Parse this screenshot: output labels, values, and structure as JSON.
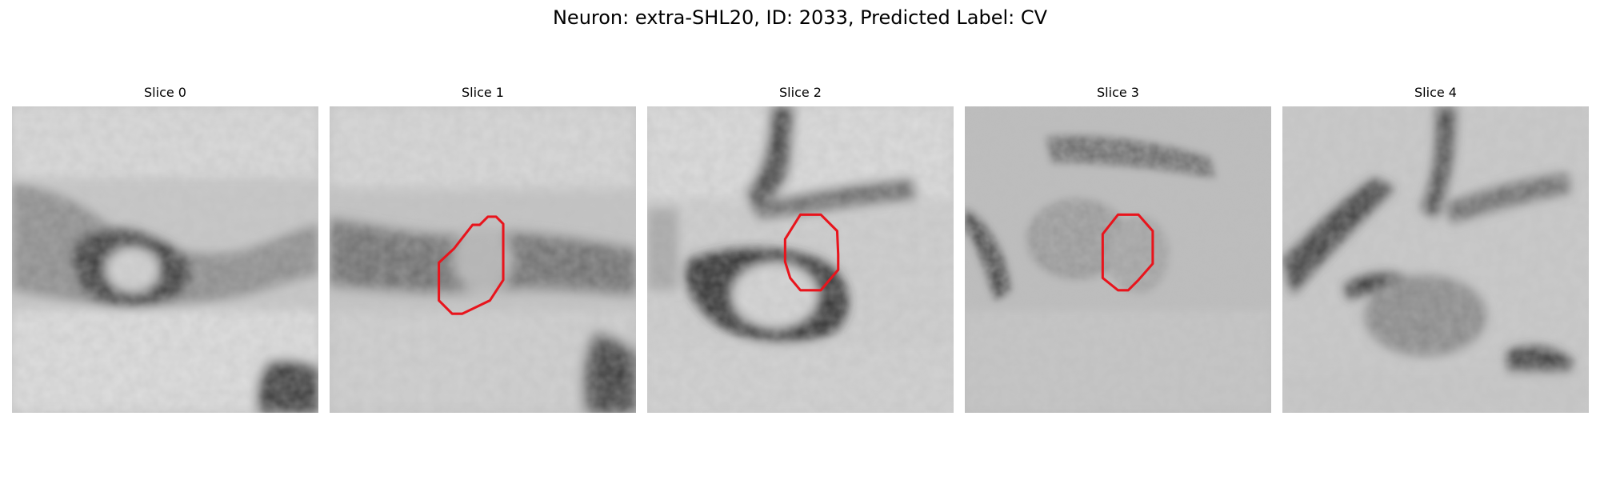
{
  "figure": {
    "title": "Neuron: extra-SHL20, ID: 2033, Predicted Label: CV"
  },
  "colors": {
    "contour": "#e8141c",
    "background": "#ffffff"
  },
  "slices": [
    {
      "title": "Slice 0",
      "has_contour": false
    },
    {
      "title": "Slice 1",
      "has_contour": true
    },
    {
      "title": "Slice 2",
      "has_contour": true
    },
    {
      "title": "Slice 3",
      "has_contour": true
    },
    {
      "title": "Slice 4",
      "has_contour": false
    }
  ]
}
